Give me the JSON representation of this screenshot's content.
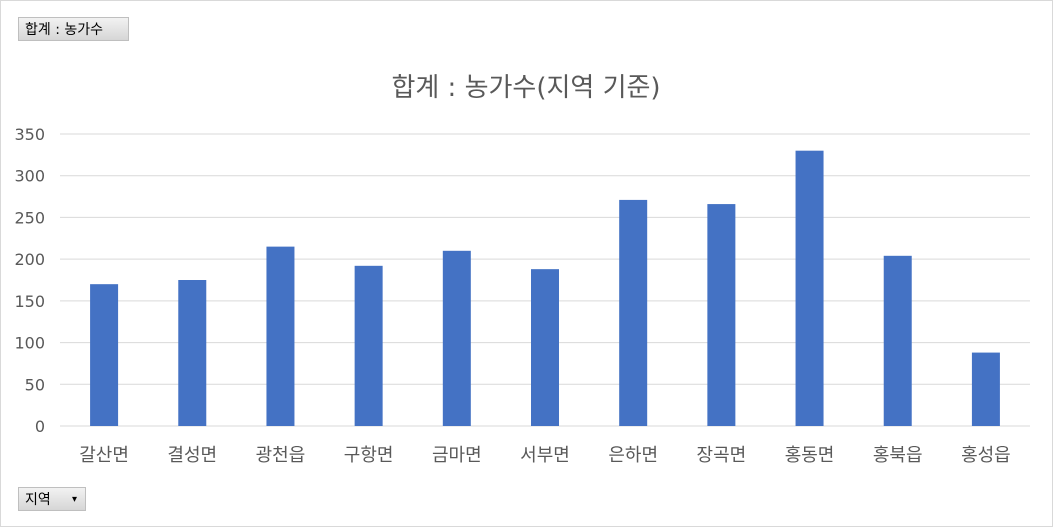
{
  "pivot": {
    "sum_field_label": "합계 : 농가수",
    "axis_field_label": "지역",
    "axis_field_arrow": "▾"
  },
  "chart_data": {
    "type": "bar",
    "title": "합계 : 농가수(지역 기준)",
    "categories": [
      "갈산면",
      "결성면",
      "광천읍",
      "구항면",
      "금마면",
      "서부면",
      "은하면",
      "장곡면",
      "홍동면",
      "홍북읍",
      "홍성읍"
    ],
    "values": [
      170,
      175,
      215,
      192,
      210,
      188,
      271,
      266,
      330,
      204,
      88
    ],
    "ylim": [
      0,
      350
    ],
    "yticks": [
      0,
      50,
      100,
      150,
      200,
      250,
      300,
      350
    ],
    "grid": true,
    "bar_color": "#4472c4",
    "grid_color": "#d9d9d9"
  }
}
